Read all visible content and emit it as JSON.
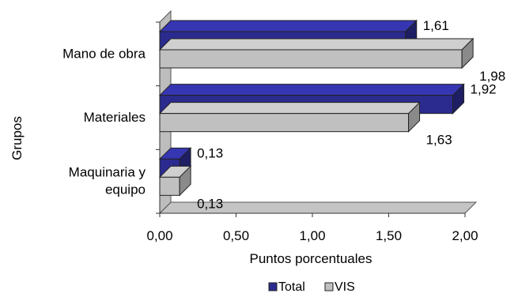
{
  "chart_data": {
    "type": "bar",
    "orientation": "horizontal",
    "three_d": true,
    "categories": [
      "Mano de obra",
      "Materiales",
      "Maquinaria y equipo"
    ],
    "category_lines": [
      [
        "Mano de obra"
      ],
      [
        "Materiales"
      ],
      [
        "Maquinaria y",
        "equipo"
      ]
    ],
    "series": [
      {
        "name": "Total",
        "values": [
          1.61,
          1.92,
          0.13
        ],
        "labels": [
          "1,61",
          "1,92",
          "0,13"
        ],
        "color": "#2b2b8f"
      },
      {
        "name": "VIS",
        "values": [
          1.98,
          1.63,
          0.13
        ],
        "labels": [
          "1,98",
          "1,63",
          "0,13"
        ],
        "color": "#c0c0c0"
      }
    ],
    "xlabel": "Puntos porcentuales",
    "ylabel": "Grupos",
    "xlim": [
      0,
      2
    ],
    "x_ticks": [
      0,
      0.5,
      1,
      1.5,
      2
    ],
    "x_tick_labels": [
      "0,00",
      "0,50",
      "1,00",
      "1,50",
      "2,00"
    ],
    "legend_position": "bottom",
    "grid": false
  }
}
